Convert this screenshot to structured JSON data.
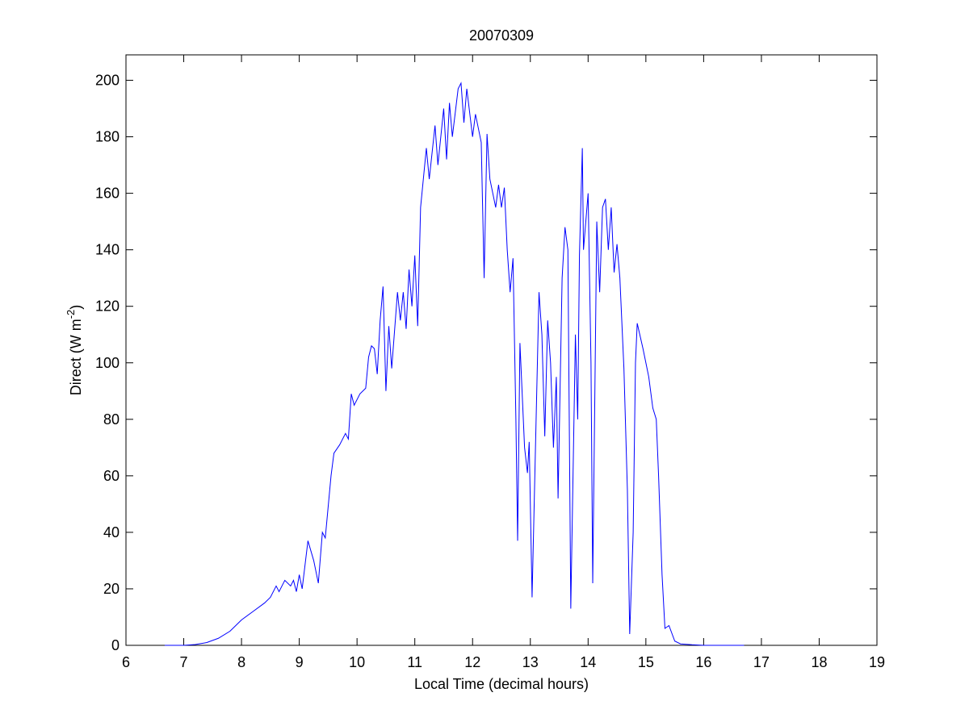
{
  "chart_data": {
    "type": "line",
    "title": "20070309",
    "xlabel": "Local Time (decimal hours)",
    "ylabel": {
      "text": "Direct (W m",
      "superscript": "-2",
      "suffix": ")"
    },
    "color": "#0000ff",
    "grid": false,
    "xlim": [
      6,
      19
    ],
    "ylim": [
      0,
      209
    ],
    "xticks": [
      6,
      7,
      8,
      9,
      10,
      11,
      12,
      13,
      14,
      15,
      16,
      17,
      18,
      19
    ],
    "yticks": [
      0,
      20,
      40,
      60,
      80,
      100,
      120,
      140,
      160,
      180,
      200
    ],
    "x": [
      6.67,
      7.0,
      7.2,
      7.4,
      7.6,
      7.8,
      8.0,
      8.2,
      8.4,
      8.5,
      8.6,
      8.65,
      8.75,
      8.85,
      8.9,
      8.95,
      9.0,
      9.05,
      9.15,
      9.25,
      9.33,
      9.4,
      9.45,
      9.55,
      9.6,
      9.7,
      9.8,
      9.85,
      9.9,
      9.95,
      10.05,
      10.15,
      10.2,
      10.25,
      10.3,
      10.35,
      10.4,
      10.45,
      10.5,
      10.55,
      10.6,
      10.7,
      10.75,
      10.8,
      10.85,
      10.9,
      10.95,
      11.0,
      11.05,
      11.1,
      11.2,
      11.25,
      11.35,
      11.4,
      11.5,
      11.55,
      11.6,
      11.65,
      11.75,
      11.8,
      11.85,
      11.9,
      12.0,
      12.05,
      12.15,
      12.2,
      12.25,
      12.3,
      12.4,
      12.45,
      12.5,
      12.55,
      12.6,
      12.65,
      12.7,
      12.75,
      12.78,
      12.82,
      12.9,
      12.95,
      12.98,
      13.03,
      13.1,
      13.15,
      13.2,
      13.25,
      13.3,
      13.35,
      13.4,
      13.45,
      13.48,
      13.55,
      13.6,
      13.65,
      13.7,
      13.78,
      13.82,
      13.85,
      13.9,
      13.92,
      14.0,
      14.05,
      14.08,
      14.15,
      14.2,
      14.25,
      14.3,
      14.35,
      14.4,
      14.45,
      14.5,
      14.55,
      14.62,
      14.68,
      14.72,
      14.78,
      14.82,
      14.85,
      14.95,
      15.0,
      15.05,
      15.12,
      15.18,
      15.22,
      15.28,
      15.33,
      15.4,
      15.5,
      15.6,
      15.8,
      16.0,
      16.7
    ],
    "values": [
      0,
      0,
      0.3,
      1,
      2.5,
      5,
      9,
      12,
      15,
      17,
      21,
      19,
      23,
      21,
      23,
      19,
      25,
      20,
      37,
      30,
      22,
      40,
      38,
      60,
      68,
      71,
      75,
      73,
      89,
      85,
      89,
      91,
      102,
      106,
      105,
      96,
      115,
      127,
      90,
      113,
      98,
      125,
      115,
      125,
      112,
      133,
      120,
      138,
      113,
      155,
      176,
      165,
      184,
      170,
      190,
      172,
      192,
      180,
      197,
      199,
      185,
      197,
      180,
      188,
      178,
      130,
      181,
      165,
      155,
      163,
      155,
      162,
      140,
      125,
      137,
      80,
      37,
      107,
      70,
      61,
      72,
      17,
      80,
      125,
      110,
      74,
      115,
      100,
      70,
      95,
      52,
      130,
      148,
      140,
      13,
      110,
      80,
      138,
      176,
      140,
      160,
      100,
      22,
      150,
      125,
      155,
      158,
      140,
      155,
      132,
      142,
      130,
      98,
      55,
      4,
      40,
      100,
      114,
      105,
      100,
      95,
      84,
      80,
      60,
      25,
      6,
      7,
      1.5,
      0.5,
      0.2,
      0,
      0
    ]
  }
}
